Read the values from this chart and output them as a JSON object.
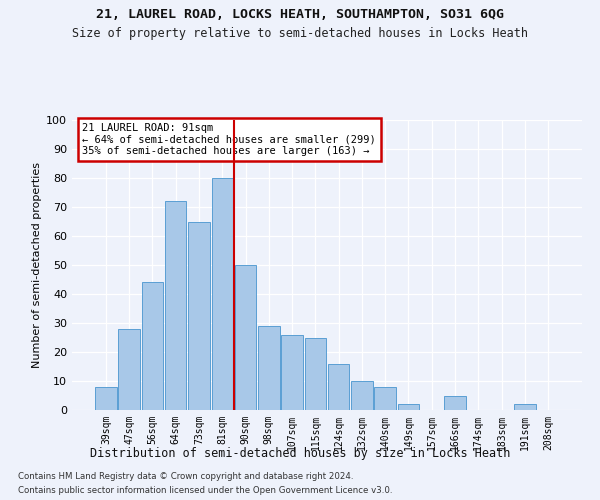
{
  "title1": "21, LAUREL ROAD, LOCKS HEATH, SOUTHAMPTON, SO31 6QG",
  "title2": "Size of property relative to semi-detached houses in Locks Heath",
  "xlabel": "Distribution of semi-detached houses by size in Locks Heath",
  "ylabel": "Number of semi-detached properties",
  "footer1": "Contains HM Land Registry data © Crown copyright and database right 2024.",
  "footer2": "Contains public sector information licensed under the Open Government Licence v3.0.",
  "categories": [
    "39sqm",
    "47sqm",
    "56sqm",
    "64sqm",
    "73sqm",
    "81sqm",
    "90sqm",
    "98sqm",
    "107sqm",
    "115sqm",
    "124sqm",
    "132sqm",
    "140sqm",
    "149sqm",
    "157sqm",
    "166sqm",
    "174sqm",
    "183sqm",
    "191sqm",
    "208sqm"
  ],
  "values": [
    8,
    28,
    44,
    72,
    65,
    80,
    50,
    29,
    26,
    25,
    16,
    10,
    8,
    2,
    0,
    5,
    0,
    0,
    2,
    0
  ],
  "bar_color": "#a8c8e8",
  "bar_edge_color": "#5a9fd4",
  "annotation_title": "21 LAUREL ROAD: 91sqm",
  "annotation_line1": "← 64% of semi-detached houses are smaller (299)",
  "annotation_line2": "35% of semi-detached houses are larger (163) →",
  "annotation_box_color": "#ffffff",
  "annotation_box_edge": "#cc0000",
  "vline_color": "#cc0000",
  "bg_color": "#eef2fb",
  "grid_color": "#ffffff",
  "ylim": [
    0,
    100
  ],
  "yticks": [
    0,
    10,
    20,
    30,
    40,
    50,
    60,
    70,
    80,
    90,
    100
  ],
  "vline_x_index": 6
}
